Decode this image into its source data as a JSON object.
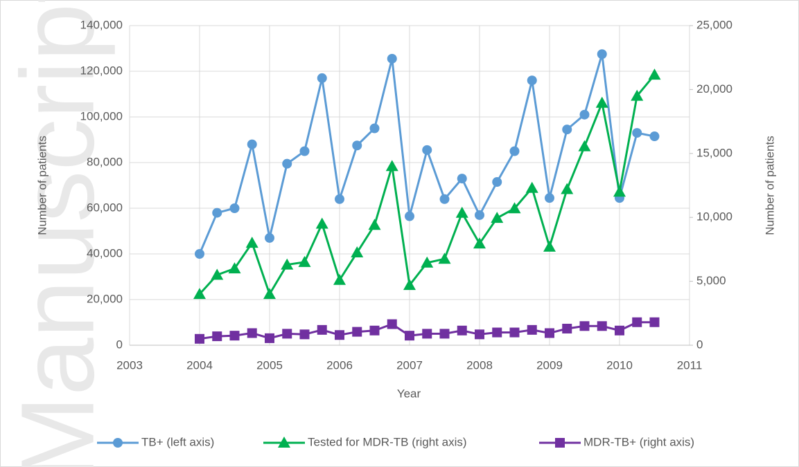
{
  "chart_data": {
    "type": "line",
    "watermark": "Manuscript",
    "x_label": "Year",
    "y_label": "Number of patients",
    "y2_label": "Number of patients",
    "x": [
      2004,
      2004.25,
      2004.5,
      2004.75,
      2005,
      2005.25,
      2005.5,
      2005.75,
      2006,
      2006.25,
      2006.5,
      2006.75,
      2007,
      2007.25,
      2007.5,
      2007.75,
      2008,
      2008.25,
      2008.5,
      2008.75,
      2009,
      2009.25,
      2009.5,
      2009.75,
      2010,
      2010.25,
      2010.5
    ],
    "xlim": [
      2003,
      2011
    ],
    "xticks": [
      2003,
      2004,
      2005,
      2006,
      2007,
      2008,
      2009,
      2010,
      2011
    ],
    "ylim": [
      0,
      140000
    ],
    "yticks": [
      0,
      {
        "value": 20000,
        "label": "20,000"
      },
      {
        "value": 40000,
        "label": "40,000"
      },
      {
        "value": 60000,
        "label": "60,000"
      },
      {
        "value": 80000,
        "label": "80,000"
      },
      {
        "value": 100000,
        "label": "100,000"
      },
      {
        "value": 120000,
        "label": "120,000"
      },
      {
        "value": 140000,
        "label": "140,000"
      }
    ],
    "y2lim": [
      0,
      25000
    ],
    "y2ticks": [
      0,
      {
        "value": 5000,
        "label": "5,000"
      },
      {
        "value": 10000,
        "label": "10,000"
      },
      {
        "value": 15000,
        "label": "15,000"
      },
      {
        "value": 20000,
        "label": "20,000"
      },
      {
        "value": 25000,
        "label": "25,000"
      }
    ],
    "grid": true,
    "legend": "bottom",
    "series": [
      {
        "name": "TB+ (left axis)",
        "color": "#5b9bd5",
        "marker": "circle",
        "values": [
          40000,
          58000,
          60000,
          88000,
          47000,
          79500,
          85000,
          117000,
          64000,
          87500,
          95000,
          125500,
          56500,
          85500,
          64000,
          73000,
          57000,
          71500,
          85000,
          116000,
          64500,
          94500,
          101000,
          127500,
          64500,
          93000,
          91500
        ]
      },
      {
        "name": "Tested for MDR-TB (right axis)",
        "color": "#00b050",
        "marker": "triangle",
        "axis": "y2",
        "values": [
          4000,
          5500,
          6000,
          8000,
          4000,
          6300,
          6500,
          9500,
          5100,
          7250,
          9400,
          14000,
          4700,
          6450,
          6750,
          10350,
          7950,
          9950,
          10700,
          12300,
          7700,
          12200,
          15550,
          18950,
          12000,
          19500,
          21150
        ]
      },
      {
        "name": "MDR-TB+ (right axis)",
        "color": "#7030a0",
        "marker": "square",
        "axis": "y2",
        "values": [
          500,
          700,
          750,
          950,
          550,
          900,
          850,
          1200,
          800,
          1050,
          1150,
          1650,
          750,
          900,
          900,
          1150,
          850,
          1000,
          1000,
          1200,
          950,
          1300,
          1500,
          1500,
          1150,
          1800,
          1800
        ]
      }
    ]
  }
}
